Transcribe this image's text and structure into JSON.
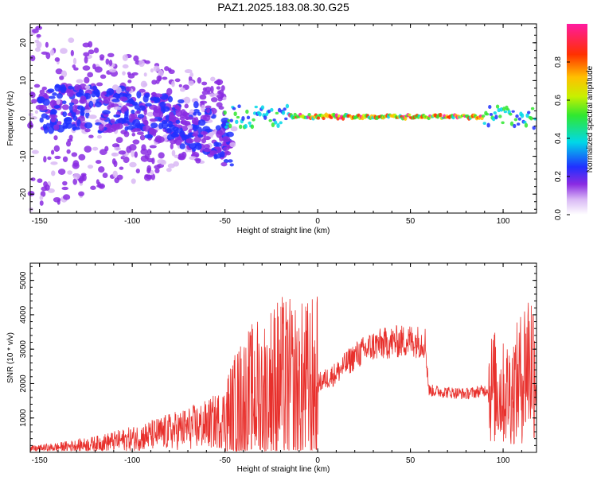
{
  "title": "PAZ1.2025.183.08.30.G25",
  "colors": {
    "snr_line": "#e8302c",
    "background": "#ffffff",
    "axis": "#000000"
  },
  "chart_data": [
    {
      "type": "heatmap",
      "xlabel": "Height of straight line (km)",
      "ylabel": "Frequency (Hz)",
      "xlim": [
        -155,
        118
      ],
      "ylim": [
        -25,
        25
      ],
      "xticks": [
        -150,
        -100,
        -50,
        0,
        50,
        100
      ],
      "yticks": [
        -20,
        -10,
        0,
        10,
        20
      ],
      "colorbar": {
        "label": "Normalized spectral amplitude",
        "range": [
          0.0,
          1.0
        ],
        "ticks": [
          0.0,
          0.2,
          0.4,
          0.6,
          0.8
        ],
        "colormap": "white-purple-blue-cyan-green-yellow-orange-red-magenta"
      },
      "features": [
        {
          "description": "scattered energy",
          "x_range": [
            -155,
            -50
          ],
          "freq_range": [
            -25,
            25
          ],
          "amplitude": 0.15
        },
        {
          "description": "band trend",
          "x": [
            -150,
            -100,
            -60,
            -45
          ],
          "freq": [
            3,
            2,
            -3,
            -8
          ],
          "amplitude": 0.2
        },
        {
          "description": "narrow line",
          "x_range": [
            -15,
            90
          ],
          "freq": 0.5,
          "amplitude": 0.85
        }
      ]
    },
    {
      "type": "line",
      "xlabel": "Height of straight line (km)",
      "ylabel": "SNR (10 * v/v)",
      "xlim": [
        -155,
        118
      ],
      "ylim": [
        0,
        5500
      ],
      "xticks": [
        -150,
        -100,
        -50,
        0,
        50,
        100
      ],
      "yticks": [
        1000,
        2000,
        3000,
        4000,
        5000
      ],
      "series": [
        {
          "x": [
            -155,
            -140,
            -120,
            -100,
            -80,
            -60,
            -50,
            -40,
            -30,
            -20,
            -10,
            0,
            10,
            20,
            30,
            40,
            50,
            58,
            60,
            70,
            80,
            90,
            95,
            100,
            105,
            110,
            113,
            118
          ],
          "y": [
            100,
            150,
            250,
            400,
            600,
            800,
            1000,
            1500,
            1800,
            2000,
            1900,
            2000,
            2300,
            2800,
            3100,
            3200,
            3250,
            3200,
            1800,
            1750,
            1700,
            1800,
            1900,
            1700,
            1800,
            2200,
            2700,
            2600
          ]
        }
      ]
    }
  ]
}
